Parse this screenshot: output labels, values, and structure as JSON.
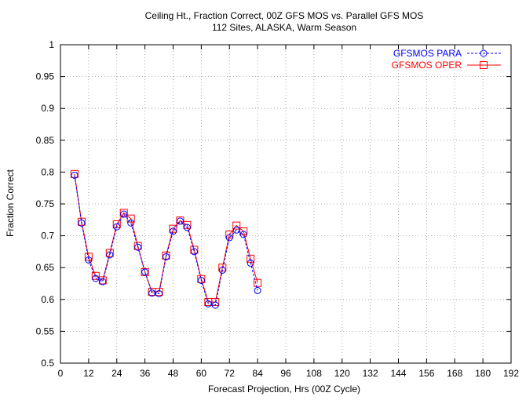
{
  "chart_data": {
    "type": "line",
    "title": "Ceiling Ht., Fraction Correct, 00Z GFS MOS vs. Parallel GFS MOS",
    "subtitle": "112 Sites, ALASKA, Warm Season",
    "xlabel": "Forecast Projection, Hrs (00Z Cycle)",
    "ylabel": "Fraction Correct",
    "xlim": [
      0,
      192
    ],
    "ylim": [
      0.5,
      1
    ],
    "xticks": [
      0,
      12,
      24,
      36,
      48,
      60,
      72,
      84,
      96,
      108,
      120,
      132,
      144,
      156,
      168,
      180,
      192
    ],
    "yticks": [
      0.5,
      0.55,
      0.6,
      0.65,
      0.7,
      0.75,
      0.8,
      0.85,
      0.9,
      0.95,
      1
    ],
    "ytick_labels": [
      "0.5",
      "0.55",
      "0.6",
      "0.65",
      "0.7",
      "0.75",
      "0.8",
      "0.85",
      "0.9",
      "0.95",
      "1"
    ],
    "grid": true,
    "legend_position": "top-right",
    "x": [
      6,
      9,
      12,
      15,
      18,
      21,
      24,
      27,
      30,
      33,
      36,
      39,
      42,
      45,
      48,
      51,
      54,
      57,
      60,
      63,
      66,
      69,
      72,
      75,
      78,
      81,
      84
    ],
    "series": [
      {
        "name": "GFSMOS PARA",
        "color": "#0000ff",
        "marker": "circle",
        "line_style": "dashed",
        "values": [
          0.795,
          0.72,
          0.662,
          0.633,
          0.628,
          0.67,
          0.714,
          0.734,
          0.72,
          0.682,
          0.643,
          0.61,
          0.609,
          0.667,
          0.707,
          0.723,
          0.713,
          0.675,
          0.63,
          0.593,
          0.591,
          0.646,
          0.697,
          0.709,
          0.702,
          0.657,
          0.614
        ]
      },
      {
        "name": "GFSMOS OPER",
        "color": "#ff0000",
        "marker": "square",
        "line_style": "solid",
        "values": [
          0.797,
          0.722,
          0.667,
          0.637,
          0.63,
          0.673,
          0.718,
          0.736,
          0.727,
          0.684,
          0.643,
          0.612,
          0.612,
          0.669,
          0.711,
          0.724,
          0.717,
          0.678,
          0.632,
          0.596,
          0.596,
          0.65,
          0.702,
          0.716,
          0.707,
          0.664,
          0.626
        ]
      }
    ]
  }
}
